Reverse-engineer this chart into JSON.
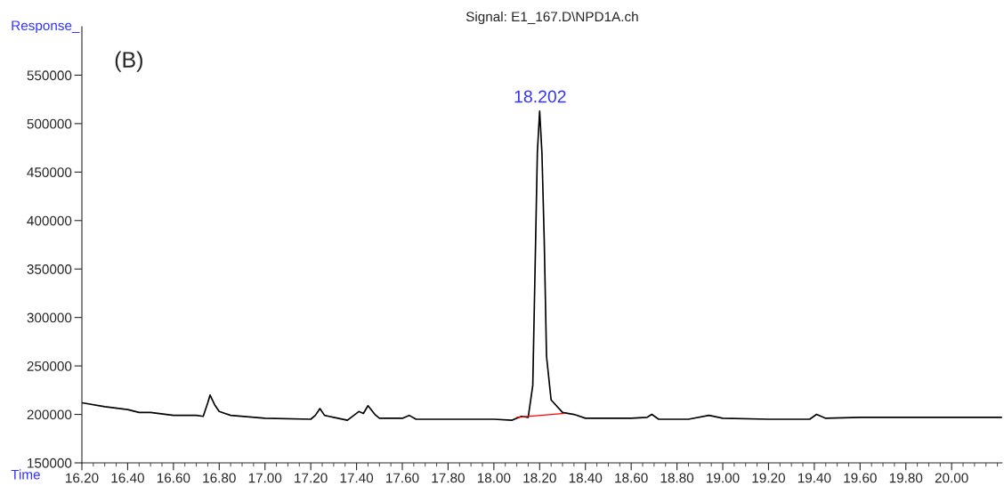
{
  "chart_data": {
    "type": "line",
    "title": "Signal: E1_167.D\\NPD1A.ch",
    "xlabel": "Time",
    "ylabel": "Response_",
    "annotations": [
      "(B)",
      {
        "text": "18.202",
        "x": 18.202,
        "y": 513000
      }
    ],
    "series": [
      {
        "color": "#000000",
        "x": [
          16.2,
          16.3,
          16.4,
          16.45,
          16.5,
          16.6,
          16.7,
          16.73,
          16.75,
          16.76,
          16.78,
          16.8,
          16.85,
          17.0,
          17.2,
          17.22,
          17.24,
          17.26,
          17.28,
          17.3,
          17.36,
          17.41,
          17.43,
          17.45,
          17.48,
          17.5,
          17.6,
          17.63,
          17.66,
          17.8,
          18.0,
          18.08,
          18.12,
          18.15,
          18.17,
          18.18,
          18.19,
          18.2,
          18.21,
          18.22,
          18.23,
          18.25,
          18.3,
          18.35,
          18.4,
          18.6,
          18.67,
          18.69,
          18.72,
          18.85,
          18.94,
          19.0,
          19.2,
          19.38,
          19.41,
          19.45,
          19.6,
          19.8,
          20.0,
          20.22
        ],
        "values": [
          212000,
          208000,
          205000,
          202000,
          202000,
          199000,
          199000,
          198000,
          212000,
          220000,
          210000,
          203000,
          199000,
          196000,
          195000,
          199000,
          206000,
          199000,
          198000,
          197000,
          194000,
          203000,
          201000,
          209000,
          200000,
          196000,
          196000,
          199000,
          195000,
          195000,
          195000,
          194000,
          198000,
          197000,
          230000,
          350000,
          470000,
          513000,
          470000,
          380000,
          260000,
          215000,
          202000,
          200000,
          196000,
          196000,
          197000,
          200000,
          195000,
          195000,
          199000,
          196000,
          195000,
          195000,
          200000,
          196000,
          197000,
          197000,
          197000,
          197000
        ]
      },
      {
        "color": "#ff0000",
        "x": [
          18.1,
          18.31
        ],
        "values": [
          197000,
          201000
        ]
      }
    ],
    "xlim": [
      16.2,
      20.22
    ],
    "ylim": [
      150000,
      600000
    ],
    "xticks": [
      {
        "value": 16.2,
        "label": "16.20"
      },
      {
        "value": 16.4,
        "label": "16.40"
      },
      {
        "value": 16.6,
        "label": "16.60"
      },
      {
        "value": 16.8,
        "label": "16.80"
      },
      {
        "value": 17.0,
        "label": "17.00"
      },
      {
        "value": 17.2,
        "label": "17.20"
      },
      {
        "value": 17.4,
        "label": "17.40"
      },
      {
        "value": 17.6,
        "label": "17.60"
      },
      {
        "value": 17.8,
        "label": "17.80"
      },
      {
        "value": 18.0,
        "label": "18.00"
      },
      {
        "value": 18.2,
        "label": "18.20"
      },
      {
        "value": 18.4,
        "label": "18.40"
      },
      {
        "value": 18.6,
        "label": "18.60"
      },
      {
        "value": 18.8,
        "label": "18.80"
      },
      {
        "value": 19.0,
        "label": "19.00"
      },
      {
        "value": 19.2,
        "label": "19.20"
      },
      {
        "value": 19.4,
        "label": "19.40"
      },
      {
        "value": 19.6,
        "label": "19.60"
      },
      {
        "value": 19.8,
        "label": "19.80"
      },
      {
        "value": 20.0,
        "label": "20.00"
      },
      {
        "value": 16.25,
        "label": null
      },
      {
        "value": 16.3,
        "label": null
      },
      {
        "value": 16.35,
        "label": null
      },
      {
        "value": 16.45,
        "label": null
      },
      {
        "value": 16.5,
        "label": null
      },
      {
        "value": 16.55,
        "label": null
      },
      {
        "value": 16.65,
        "label": null
      },
      {
        "value": 16.7,
        "label": null
      },
      {
        "value": 16.75,
        "label": null
      },
      {
        "value": 16.85,
        "label": null
      },
      {
        "value": 16.9,
        "label": null
      },
      {
        "value": 16.95,
        "label": null
      },
      {
        "value": 17.05,
        "label": null
      },
      {
        "value": 17.1,
        "label": null
      },
      {
        "value": 17.15,
        "label": null
      },
      {
        "value": 17.25,
        "label": null
      },
      {
        "value": 17.3,
        "label": null
      },
      {
        "value": 17.35,
        "label": null
      },
      {
        "value": 17.45,
        "label": null
      },
      {
        "value": 17.5,
        "label": null
      },
      {
        "value": 17.55,
        "label": null
      },
      {
        "value": 17.65,
        "label": null
      },
      {
        "value": 17.7,
        "label": null
      },
      {
        "value": 17.75,
        "label": null
      },
      {
        "value": 17.85,
        "label": null
      },
      {
        "value": 17.9,
        "label": null
      },
      {
        "value": 17.95,
        "label": null
      },
      {
        "value": 18.05,
        "label": null
      },
      {
        "value": 18.1,
        "label": null
      },
      {
        "value": 18.15,
        "label": null
      },
      {
        "value": 18.25,
        "label": null
      },
      {
        "value": 18.3,
        "label": null
      },
      {
        "value": 18.35,
        "label": null
      },
      {
        "value": 18.45,
        "label": null
      },
      {
        "value": 18.5,
        "label": null
      },
      {
        "value": 18.55,
        "label": null
      },
      {
        "value": 18.65,
        "label": null
      },
      {
        "value": 18.7,
        "label": null
      },
      {
        "value": 18.75,
        "label": null
      },
      {
        "value": 18.85,
        "label": null
      },
      {
        "value": 18.9,
        "label": null
      },
      {
        "value": 18.95,
        "label": null
      },
      {
        "value": 19.05,
        "label": null
      },
      {
        "value": 19.1,
        "label": null
      },
      {
        "value": 19.15,
        "label": null
      },
      {
        "value": 19.25,
        "label": null
      },
      {
        "value": 19.3,
        "label": null
      },
      {
        "value": 19.35,
        "label": null
      },
      {
        "value": 19.45,
        "label": null
      },
      {
        "value": 19.5,
        "label": null
      },
      {
        "value": 19.55,
        "label": null
      },
      {
        "value": 19.65,
        "label": null
      },
      {
        "value": 19.7,
        "label": null
      },
      {
        "value": 19.75,
        "label": null
      },
      {
        "value": 19.85,
        "label": null
      },
      {
        "value": 19.9,
        "label": null
      },
      {
        "value": 19.95,
        "label": null
      },
      {
        "value": 20.05,
        "label": null
      },
      {
        "value": 20.1,
        "label": null
      },
      {
        "value": 20.15,
        "label": null
      },
      {
        "value": 20.2,
        "label": null
      }
    ],
    "yticks": [
      150000,
      200000,
      250000,
      300000,
      350000,
      400000,
      450000,
      500000,
      550000
    ],
    "grid": false,
    "legend": false
  }
}
